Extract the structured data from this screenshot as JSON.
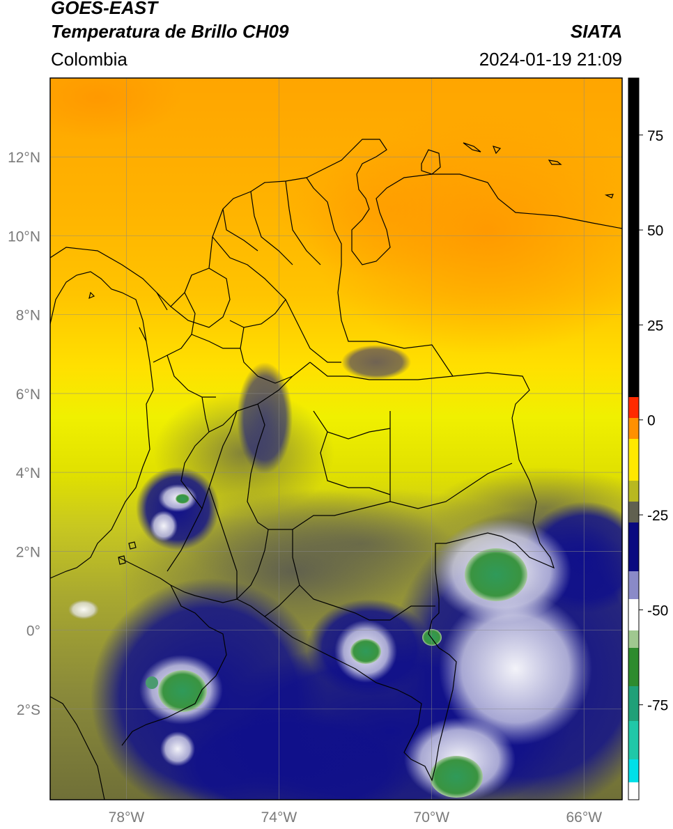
{
  "header": {
    "satellite": "GOES-EAST",
    "product": "Temperatura de Brillo CH09",
    "organization": "SIATA",
    "region": "Colombia",
    "datetime": "2024-01-19 21:09"
  },
  "axes": {
    "lat_labels": [
      "12°N",
      "10°N",
      "8°N",
      "6°N",
      "4°N",
      "2°N",
      "0°",
      "2°S"
    ],
    "lat_values": [
      12,
      10,
      8,
      6,
      4,
      2,
      0,
      -2
    ],
    "lon_labels": [
      "78°W",
      "74°W",
      "70°W",
      "66°W"
    ],
    "lon_values": [
      -78,
      -74,
      -70,
      -66
    ],
    "lat_range": [
      -4.3,
      14.0
    ],
    "lon_range": [
      -80.0,
      -65.0
    ]
  },
  "colorbar": {
    "tick_labels": [
      "75",
      "50",
      "25",
      "0",
      "-25",
      "-50",
      "-75"
    ],
    "tick_values": [
      75,
      50,
      25,
      0,
      -25,
      -50,
      -75
    ],
    "range": [
      -100,
      90
    ],
    "colors": {
      "above_10": "#000000",
      "orange_red": "#ff2a00",
      "orange": "#ffa000",
      "yellow": "#ffff00",
      "olive": "#b8b820",
      "dark_gray": "#555555",
      "navy": "#0a0a80",
      "white": "#ffffff",
      "green": "#2e8b2e",
      "teal": "#20c8a0",
      "cyan": "#00e0e8"
    }
  },
  "colors": {
    "coastline": "#000000",
    "gridline": "#888888",
    "frame": "#000000"
  }
}
